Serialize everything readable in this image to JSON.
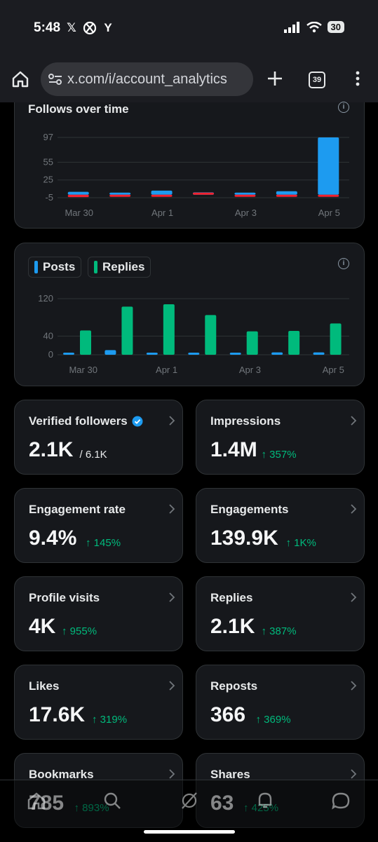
{
  "status_bar": {
    "time": "5:48",
    "app_icons": [
      "x-icon",
      "xbox-icon",
      "ycombinator-icon"
    ],
    "battery": "30"
  },
  "browser": {
    "url": "x.com/i/account_analytics",
    "tab_count": "39"
  },
  "colors": {
    "blue": "#1d9bf0",
    "green": "#00ba7c",
    "red": "#f4212e",
    "card_bg": "#16181c"
  },
  "follows_chart": {
    "title": "Follows over time",
    "chart_data": {
      "type": "bar",
      "title": "Follows over time",
      "x_tick_labels": [
        "Mar 30",
        "Apr 1",
        "Apr 3",
        "Apr 5"
      ],
      "y_ticks": [
        97,
        55,
        25,
        -5
      ],
      "ylim": [
        -5,
        97
      ],
      "grid": true,
      "series": [
        {
          "color": "#1d9bf0",
          "values": [
            5,
            3,
            7,
            4,
            2,
            6,
            97
          ]
        },
        {
          "color": "#f4212e",
          "values": [
            -4,
            -1,
            -1,
            0,
            -1,
            -2,
            -1
          ]
        }
      ]
    }
  },
  "posts_replies_chart": {
    "legend": [
      {
        "label": "Posts",
        "color": "#1d9bf0"
      },
      {
        "label": "Replies",
        "color": "#00ba7c"
      }
    ],
    "chart_data": {
      "type": "bar",
      "x_tick_labels": [
        "Mar 30",
        "Apr 1",
        "Apr 3",
        "Apr 5"
      ],
      "y_ticks": [
        120,
        40,
        0
      ],
      "ylim": [
        0,
        120
      ],
      "grid": true,
      "series": [
        {
          "name": "Posts",
          "color": "#1d9bf0",
          "values": [
            3,
            10,
            3,
            3,
            3,
            5,
            5
          ]
        },
        {
          "name": "Replies",
          "color": "#00ba7c",
          "values": [
            52,
            103,
            108,
            85,
            50,
            51,
            67
          ]
        }
      ]
    }
  },
  "metrics": [
    {
      "label": "Verified followers",
      "value": "2.1K",
      "total": "/ 6.1K",
      "verified": true
    },
    {
      "label": "Impressions",
      "value": "1.4M",
      "change": "↑ 357%"
    },
    {
      "label": "Engagement rate",
      "value": "9.4%",
      "change": "↑ 145%"
    },
    {
      "label": "Engagements",
      "value": "139.9K",
      "change": "↑ 1K%"
    },
    {
      "label": "Profile visits",
      "value": "4K",
      "change": "↑ 955%"
    },
    {
      "label": "Replies",
      "value": "2.1K",
      "change": "↑ 387%"
    },
    {
      "label": "Likes",
      "value": "17.6K",
      "change": "↑ 319%"
    },
    {
      "label": "Reposts",
      "value": "366",
      "change": "↑ 369%"
    },
    {
      "label": "Bookmarks",
      "value": "785",
      "change": "↑ 893%"
    },
    {
      "label": "Shares",
      "value": "63",
      "change": "↑ 425%"
    }
  ],
  "bottom_nav": [
    "home-icon",
    "search-icon",
    "grok-icon",
    "notifications-icon",
    "messages-icon"
  ]
}
